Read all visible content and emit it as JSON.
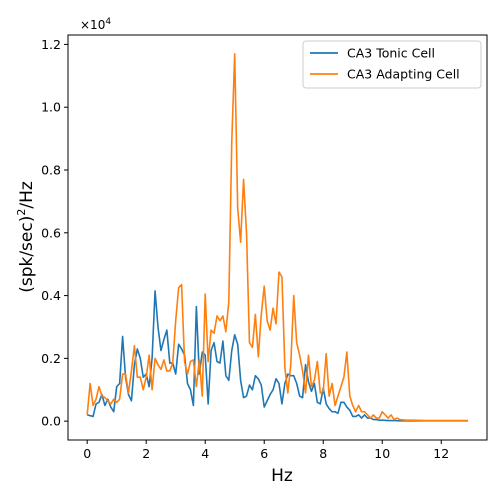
{
  "chart_data": {
    "type": "line",
    "xlabel": "Hz",
    "ylabel_base": "(spk/sec)",
    "ylabel_sup": "2",
    "ylabel_tail": "/Hz",
    "y_scale_base": "×10",
    "y_scale_exp": "4",
    "xlim": [
      -0.65,
      13.55
    ],
    "ylim": [
      -0.06,
      1.23
    ],
    "x_ticks": [
      0,
      2,
      4,
      6,
      8,
      10,
      12
    ],
    "x_tick_labels": [
      "0",
      "2",
      "4",
      "6",
      "8",
      "10",
      "12"
    ],
    "y_ticks": [
      0.0,
      0.2,
      0.4,
      0.6,
      0.8,
      1.0,
      1.2
    ],
    "y_tick_labels": [
      "0.0",
      "0.2",
      "0.4",
      "0.6",
      "0.8",
      "1.0",
      "1.2"
    ],
    "legend_position": "top-right",
    "series": [
      {
        "name": "CA3 Tonic Cell",
        "color": "#1f77b4",
        "x": [
          0.0,
          0.2,
          0.3,
          0.4,
          0.5,
          0.6,
          0.7,
          0.8,
          0.9,
          1.0,
          1.1,
          1.2,
          1.3,
          1.4,
          1.5,
          1.6,
          1.7,
          1.8,
          1.9,
          2.0,
          2.1,
          2.2,
          2.3,
          2.4,
          2.5,
          2.6,
          2.7,
          2.8,
          2.9,
          3.0,
          3.1,
          3.2,
          3.3,
          3.4,
          3.5,
          3.6,
          3.7,
          3.8,
          3.9,
          4.0,
          4.1,
          4.2,
          4.3,
          4.4,
          4.5,
          4.6,
          4.7,
          4.8,
          4.9,
          5.0,
          5.1,
          5.2,
          5.3,
          5.4,
          5.5,
          5.6,
          5.7,
          5.8,
          5.9,
          6.0,
          6.1,
          6.2,
          6.3,
          6.4,
          6.5,
          6.6,
          6.7,
          6.8,
          6.9,
          7.0,
          7.1,
          7.2,
          7.3,
          7.4,
          7.5,
          7.6,
          7.7,
          7.8,
          7.9,
          8.0,
          8.1,
          8.2,
          8.3,
          8.4,
          8.5,
          8.6,
          8.7,
          8.8,
          8.9,
          9.0,
          9.1,
          9.2,
          9.3,
          9.4,
          9.5,
          9.6,
          9.7,
          9.8,
          9.9,
          10.0,
          10.2,
          10.4,
          10.6,
          10.8,
          11.0,
          11.5,
          12.0,
          12.5,
          12.9
        ],
        "y": [
          0.02,
          0.015,
          0.055,
          0.06,
          0.085,
          0.05,
          0.07,
          0.045,
          0.03,
          0.11,
          0.12,
          0.27,
          0.14,
          0.085,
          0.065,
          0.18,
          0.23,
          0.2,
          0.14,
          0.15,
          0.11,
          0.2,
          0.415,
          0.3,
          0.225,
          0.26,
          0.29,
          0.185,
          0.185,
          0.15,
          0.245,
          0.23,
          0.21,
          0.12,
          0.1,
          0.05,
          0.365,
          0.15,
          0.22,
          0.21,
          0.055,
          0.225,
          0.25,
          0.19,
          0.185,
          0.255,
          0.145,
          0.13,
          0.225,
          0.275,
          0.245,
          0.13,
          0.075,
          0.08,
          0.115,
          0.1,
          0.145,
          0.135,
          0.115,
          0.045,
          0.065,
          0.085,
          0.1,
          0.135,
          0.12,
          0.055,
          0.12,
          0.15,
          0.145,
          0.145,
          0.12,
          0.08,
          0.075,
          0.18,
          0.125,
          0.095,
          0.12,
          0.06,
          0.055,
          0.105,
          0.055,
          0.04,
          0.03,
          0.03,
          0.025,
          0.06,
          0.06,
          0.045,
          0.035,
          0.015,
          0.015,
          0.02,
          0.01,
          0.02,
          0.01,
          0.01,
          0.005,
          0.005,
          0.003,
          0.003,
          0.002,
          0.002,
          0.001,
          0.001,
          0.001,
          0.001,
          0.001,
          0.001,
          0.001
        ]
      },
      {
        "name": "CA3 Adapting Cell",
        "color": "#ff7f0e",
        "x": [
          0.0,
          0.1,
          0.2,
          0.3,
          0.4,
          0.5,
          0.6,
          0.7,
          0.8,
          0.9,
          1.0,
          1.1,
          1.2,
          1.3,
          1.4,
          1.5,
          1.6,
          1.7,
          1.8,
          1.9,
          2.0,
          2.1,
          2.2,
          2.3,
          2.4,
          2.5,
          2.6,
          2.7,
          2.8,
          2.9,
          3.0,
          3.1,
          3.2,
          3.3,
          3.4,
          3.5,
          3.6,
          3.7,
          3.8,
          3.9,
          4.0,
          4.1,
          4.2,
          4.3,
          4.4,
          4.5,
          4.6,
          4.7,
          4.8,
          4.9,
          5.0,
          5.1,
          5.2,
          5.3,
          5.4,
          5.5,
          5.6,
          5.7,
          5.8,
          5.9,
          6.0,
          6.1,
          6.2,
          6.3,
          6.4,
          6.5,
          6.6,
          6.7,
          6.8,
          6.9,
          7.0,
          7.1,
          7.2,
          7.3,
          7.4,
          7.5,
          7.6,
          7.7,
          7.8,
          7.9,
          8.0,
          8.1,
          8.2,
          8.3,
          8.4,
          8.5,
          8.6,
          8.7,
          8.8,
          8.9,
          9.0,
          9.1,
          9.2,
          9.3,
          9.4,
          9.5,
          9.6,
          9.7,
          9.8,
          9.9,
          10.0,
          10.1,
          10.2,
          10.3,
          10.4,
          10.5,
          10.6,
          10.8,
          11.0,
          11.5,
          12.0,
          12.5,
          12.9
        ],
        "y": [
          0.02,
          0.12,
          0.05,
          0.07,
          0.11,
          0.08,
          0.075,
          0.065,
          0.055,
          0.07,
          0.06,
          0.07,
          0.15,
          0.15,
          0.09,
          0.16,
          0.24,
          0.14,
          0.14,
          0.1,
          0.14,
          0.21,
          0.1,
          0.2,
          0.18,
          0.165,
          0.195,
          0.16,
          0.16,
          0.185,
          0.32,
          0.425,
          0.435,
          0.19,
          0.15,
          0.19,
          0.195,
          0.11,
          0.195,
          0.08,
          0.405,
          0.19,
          0.29,
          0.28,
          0.335,
          0.32,
          0.335,
          0.285,
          0.38,
          0.89,
          1.17,
          0.68,
          0.57,
          0.77,
          0.6,
          0.25,
          0.235,
          0.34,
          0.205,
          0.34,
          0.43,
          0.32,
          0.29,
          0.36,
          0.31,
          0.475,
          0.46,
          0.17,
          0.09,
          0.18,
          0.4,
          0.25,
          0.21,
          0.16,
          0.09,
          0.21,
          0.11,
          0.13,
          0.19,
          0.09,
          0.095,
          0.215,
          0.08,
          0.12,
          0.05,
          0.08,
          0.11,
          0.14,
          0.22,
          0.08,
          0.05,
          0.03,
          0.05,
          0.03,
          0.03,
          0.02,
          0.01,
          0.02,
          0.01,
          0.01,
          0.03,
          0.02,
          0.01,
          0.02,
          0.005,
          0.01,
          0.005,
          0.003,
          0.003,
          0.002,
          0.002,
          0.002,
          0.002
        ]
      }
    ]
  }
}
